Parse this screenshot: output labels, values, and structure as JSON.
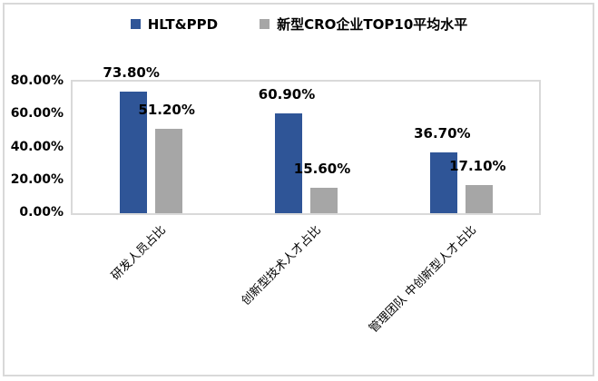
{
  "chart_data": {
    "type": "bar",
    "title": "",
    "xlabel": "",
    "ylabel": "",
    "ylim": [
      0,
      80
    ],
    "grid": false,
    "legend_position": "top-center",
    "y_tick_labels": [
      "80.00%",
      "60.00%",
      "40.00%",
      "20.00%",
      "0.00%"
    ],
    "y_tick_values": [
      80,
      60,
      40,
      20,
      0
    ],
    "categories": [
      "研发人员占比",
      "创新型技术人才占比",
      "管理团队 中创新型人才占比"
    ],
    "series": [
      {
        "name": "HLT&PPD",
        "color": "#2f5597",
        "values": [
          73.8,
          60.9,
          36.7
        ],
        "value_labels": [
          "73.80%",
          "60.90%",
          "36.70%"
        ]
      },
      {
        "name": "新型CRO企业TOP10平均水平",
        "color": "#a6a6a6",
        "values": [
          51.2,
          15.6,
          17.1
        ],
        "value_labels": [
          "51.20%",
          "15.60%",
          "17.10%"
        ]
      }
    ],
    "colors": {
      "border": "#d9d9d9",
      "background": "#ffffff",
      "text": "#000000"
    }
  }
}
